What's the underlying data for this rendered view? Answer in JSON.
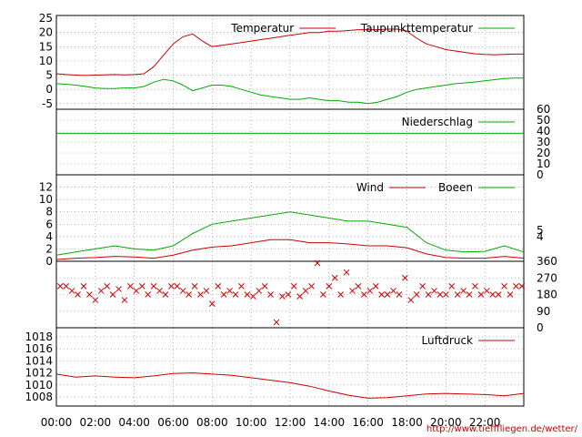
{
  "footer": {
    "url": "http://www.tiefffliegen.de/wetter/"
  },
  "x_axis": {
    "ticks": [
      "00:00",
      "02:00",
      "04:00",
      "06:00",
      "08:00",
      "10:00",
      "12:00",
      "14:00",
      "16:00",
      "18:00",
      "20:00",
      "22:00"
    ]
  },
  "colors": {
    "red": "#cc0000",
    "green": "#00aa00",
    "grid": "#888888"
  },
  "chart_data": [
    {
      "type": "line",
      "panel": "temperature",
      "xlim": [
        0,
        24
      ],
      "ylim": [
        -7,
        26
      ],
      "yticks": [
        25,
        20,
        15,
        10,
        5,
        0,
        -5
      ],
      "series": [
        {
          "name": "Temperatur",
          "color": "#cc0000",
          "x": [
            0,
            0.5,
            1,
            1.5,
            2,
            2.5,
            3,
            3.5,
            4,
            4.5,
            5,
            5.5,
            6,
            6.5,
            7,
            7.5,
            8,
            8.5,
            9,
            9.5,
            10,
            10.5,
            11,
            11.5,
            12,
            12.5,
            13,
            13.5,
            14,
            14.5,
            15,
            15.5,
            16,
            16.5,
            17,
            17.5,
            18,
            18.5,
            19,
            19.5,
            20,
            20.5,
            21,
            21.5,
            22,
            22.5,
            23,
            23.5,
            24
          ],
          "y": [
            5.5,
            5.2,
            5,
            4.9,
            5,
            5.1,
            5.2,
            5.1,
            5.2,
            5.5,
            8,
            12,
            16,
            18.5,
            19.5,
            17,
            15,
            15.5,
            16,
            16.5,
            17,
            17.5,
            18,
            18.5,
            19,
            19.5,
            20,
            20,
            20.5,
            20.5,
            20.7,
            21,
            21,
            21,
            21.2,
            21.2,
            20.5,
            18,
            16,
            15,
            14,
            13.5,
            13,
            12.5,
            12.3,
            12.2,
            12.3,
            12.4,
            12.4
          ]
        },
        {
          "name": "Taupunkttemperatur",
          "color": "#00aa00",
          "x": [
            0,
            0.5,
            1,
            1.5,
            2,
            2.5,
            3,
            3.5,
            4,
            4.5,
            5,
            5.5,
            6,
            6.5,
            7,
            7.5,
            8,
            8.5,
            9,
            9.5,
            10,
            10.5,
            11,
            11.5,
            12,
            12.5,
            13,
            13.5,
            14,
            14.5,
            15,
            15.5,
            16,
            16.5,
            17,
            17.5,
            18,
            18.5,
            19,
            19.5,
            20,
            20.5,
            21,
            21.5,
            22,
            22.5,
            23,
            23.5,
            24
          ],
          "y": [
            2,
            1.8,
            1.5,
            1,
            0.5,
            0.3,
            0.3,
            0.5,
            0.5,
            1,
            2.5,
            3.5,
            3,
            1.5,
            -0.5,
            0.5,
            1.5,
            1.5,
            1,
            0,
            -1,
            -2,
            -2.5,
            -3,
            -3.5,
            -3.5,
            -3,
            -3.5,
            -4,
            -4,
            -4.5,
            -4.5,
            -5,
            -4.5,
            -3.5,
            -2.5,
            -1,
            0,
            0.5,
            1,
            1.5,
            2,
            2.3,
            2.6,
            3,
            3.4,
            3.8,
            4,
            4
          ]
        }
      ]
    },
    {
      "type": "line",
      "panel": "precipitation",
      "xlim": [
        0,
        24
      ],
      "ylim": [
        0,
        60
      ],
      "yticks_right": [
        60,
        50,
        40,
        30,
        20,
        10,
        0
      ],
      "series": [
        {
          "name": "Niederschlag",
          "color": "#00aa00",
          "x": [
            0,
            24
          ],
          "y": [
            38,
            38
          ]
        }
      ]
    },
    {
      "type": "line",
      "panel": "wind",
      "xlim": [
        0,
        24
      ],
      "ylim": [
        0,
        14
      ],
      "yticks": [
        12,
        10,
        8,
        6,
        4,
        2,
        0
      ],
      "yticks_right": [
        5,
        4
      ],
      "series": [
        {
          "name": "Wind",
          "color": "#cc0000",
          "x": [
            0,
            1,
            2,
            3,
            4,
            5,
            6,
            7,
            8,
            9,
            10,
            11,
            12,
            13,
            14,
            15,
            16,
            17,
            18,
            19,
            20,
            21,
            22,
            23,
            24
          ],
          "y": [
            0.3,
            0.5,
            0.6,
            0.8,
            0.7,
            0.5,
            1,
            1.8,
            2.3,
            2.5,
            3,
            3.5,
            3.5,
            3,
            3,
            2.8,
            2.5,
            2.5,
            2.2,
            1.2,
            0.6,
            0.5,
            0.5,
            0.8,
            0.5
          ]
        },
        {
          "name": "Boeen",
          "color": "#00aa00",
          "x": [
            0,
            1,
            2,
            3,
            4,
            5,
            6,
            7,
            8,
            9,
            10,
            11,
            12,
            13,
            14,
            15,
            16,
            17,
            18,
            19,
            20,
            21,
            22,
            23,
            24
          ],
          "y": [
            1,
            1.5,
            2,
            2.5,
            2,
            1.8,
            2.5,
            4.5,
            6,
            6.5,
            7,
            7.5,
            8,
            7.5,
            7,
            6.5,
            6.5,
            6,
            5.5,
            3,
            1.8,
            1.5,
            1.6,
            2.5,
            1.5
          ]
        }
      ]
    },
    {
      "type": "scatter",
      "panel": "wind_direction",
      "xlim": [
        0,
        24
      ],
      "ylim": [
        0,
        360
      ],
      "yticks_right": [
        360,
        270,
        180,
        90,
        0
      ],
      "series": [
        {
          "color": "#cc0000",
          "x": [
            0.2,
            0.5,
            0.8,
            1.1,
            1.4,
            1.7,
            2.0,
            2.3,
            2.6,
            2.9,
            3.2,
            3.5,
            3.8,
            4.1,
            4.4,
            4.7,
            5.0,
            5.3,
            5.6,
            5.9,
            6.2,
            6.5,
            6.8,
            7.1,
            7.4,
            7.7,
            8.0,
            8.3,
            8.6,
            8.9,
            9.2,
            9.5,
            9.8,
            10.1,
            10.4,
            10.7,
            11.0,
            11.3,
            11.6,
            11.9,
            12.2,
            12.5,
            12.8,
            13.1,
            13.4,
            13.7,
            14.0,
            14.3,
            14.6,
            14.9,
            15.2,
            15.5,
            15.8,
            16.1,
            16.4,
            16.7,
            17.0,
            17.3,
            17.6,
            17.9,
            18.2,
            18.5,
            18.8,
            19.1,
            19.4,
            19.7,
            20.0,
            20.3,
            20.6,
            20.9,
            21.2,
            21.5,
            21.8,
            22.1,
            22.4,
            22.7,
            23.0,
            23.3,
            23.6,
            23.9
          ],
          "y": [
            225,
            225,
            200,
            180,
            225,
            180,
            150,
            200,
            225,
            180,
            210,
            150,
            225,
            200,
            225,
            180,
            225,
            200,
            180,
            225,
            225,
            200,
            180,
            225,
            180,
            200,
            130,
            225,
            180,
            200,
            180,
            225,
            180,
            170,
            200,
            225,
            180,
            30,
            170,
            180,
            225,
            170,
            200,
            225,
            350,
            180,
            225,
            270,
            180,
            300,
            200,
            225,
            180,
            200,
            225,
            180,
            180,
            200,
            180,
            270,
            150,
            180,
            225,
            180,
            200,
            180,
            180,
            225,
            180,
            200,
            180,
            225,
            180,
            200,
            180,
            180,
            225,
            180,
            225,
            225
          ]
        }
      ]
    },
    {
      "type": "line",
      "panel": "pressure",
      "xlim": [
        0,
        24
      ],
      "ylim": [
        1006.5,
        1019.5
      ],
      "yticks": [
        1018,
        1016,
        1014,
        1012,
        1010,
        1008
      ],
      "series": [
        {
          "name": "Luftdruck",
          "color": "#cc0000",
          "x": [
            0,
            1,
            2,
            3,
            4,
            5,
            6,
            7,
            8,
            9,
            10,
            11,
            12,
            13,
            14,
            15,
            16,
            17,
            18,
            19,
            20,
            21,
            22,
            23,
            24
          ],
          "y": [
            1011.8,
            1011.3,
            1011.5,
            1011.3,
            1011.2,
            1011.5,
            1011.9,
            1012.0,
            1011.8,
            1011.6,
            1011.2,
            1010.8,
            1010.4,
            1009.8,
            1009.0,
            1008.3,
            1007.8,
            1007.9,
            1008.2,
            1008.5,
            1008.6,
            1008.5,
            1008.4,
            1008.2,
            1008.6
          ]
        }
      ]
    }
  ]
}
